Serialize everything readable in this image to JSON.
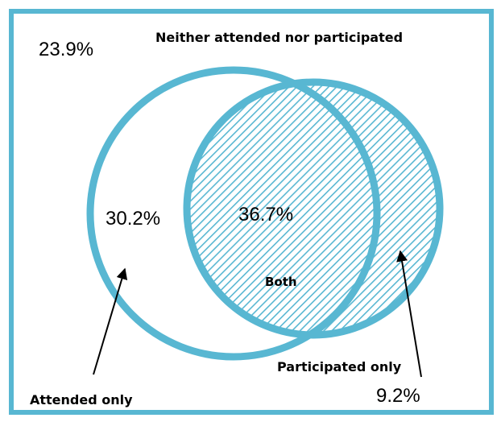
{
  "labels": {
    "neither": "Neither attended nor participated",
    "attended_only": "Attended only",
    "participated_only": "Participated only",
    "both": "Both"
  },
  "values": {
    "neither": "23.9%",
    "attended_only": "30.2%",
    "both": "36.7%",
    "participated_only": "9.2%"
  },
  "colors": {
    "frame": "#58b7d2",
    "circle_stroke": "#58b7d2",
    "hatch": "#58b7d2",
    "arrow": "#000000",
    "text": "#000000"
  }
}
